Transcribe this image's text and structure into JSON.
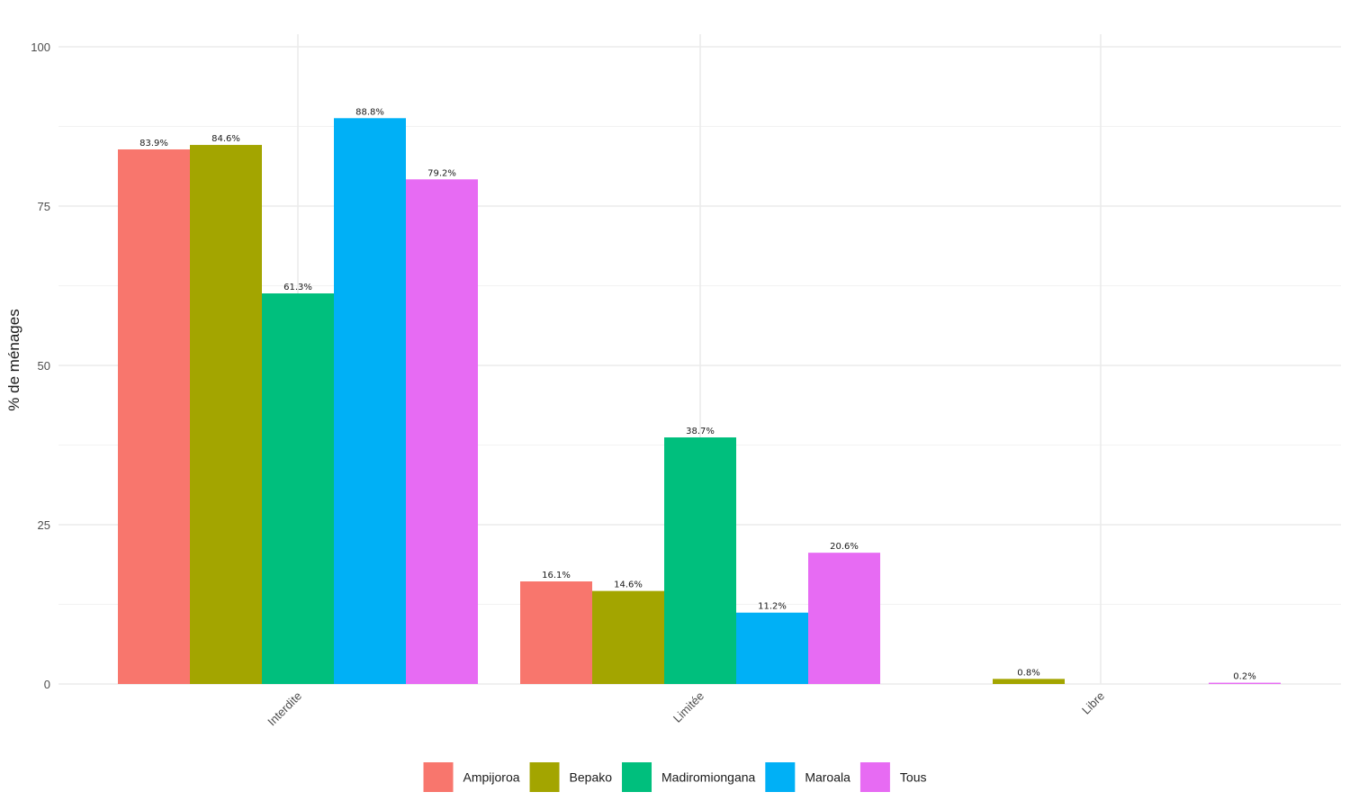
{
  "chart_data": {
    "type": "bar",
    "title": "",
    "xlabel": "",
    "ylabel": "% de ménages",
    "categories": [
      "Interdite",
      "Limitée",
      "Libre"
    ],
    "ylim": [
      0,
      100
    ],
    "yticks": [
      0,
      25,
      50,
      75,
      100
    ],
    "grid": true,
    "legend_position": "bottom",
    "series": [
      {
        "name": "Ampijoroa",
        "color": "#F8766D",
        "values": [
          83.9,
          16.1,
          null
        ],
        "labels": [
          "83.9%",
          "16.1%",
          ""
        ]
      },
      {
        "name": "Bepako",
        "color": "#A3A500",
        "values": [
          84.6,
          14.6,
          0.8
        ],
        "labels": [
          "84.6%",
          "14.6%",
          "0.8%"
        ]
      },
      {
        "name": "Madiromiongana",
        "color": "#00BF7D",
        "values": [
          61.3,
          38.7,
          null
        ],
        "labels": [
          "61.3%",
          "38.7%",
          ""
        ]
      },
      {
        "name": "Maroala",
        "color": "#00B0F6",
        "values": [
          88.8,
          11.2,
          null
        ],
        "labels": [
          "88.8%",
          "11.2%",
          ""
        ]
      },
      {
        "name": "Tous",
        "color": "#E76BF3",
        "values": [
          79.2,
          20.6,
          0.2
        ],
        "labels": [
          "79.2%",
          "20.6%",
          "0.2%"
        ]
      }
    ]
  }
}
